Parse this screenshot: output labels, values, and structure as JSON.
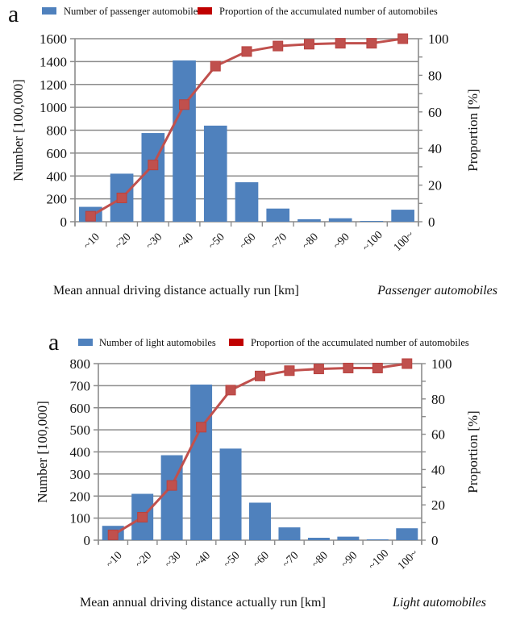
{
  "chart_data": [
    {
      "type": "bar",
      "panel_label": "a",
      "title": "",
      "caption": "Passenger automobiles",
      "xlabel": "Mean annual driving distance actually run [km]",
      "ylabel": "Number [100,000]",
      "y2label": "Proportion  [%]",
      "ylim": [
        0,
        1600
      ],
      "yticks": [
        0,
        200,
        400,
        600,
        800,
        1000,
        1200,
        1400,
        1600
      ],
      "y2lim": [
        0,
        100
      ],
      "y2ticks": [
        0,
        20,
        40,
        60,
        80,
        100
      ],
      "grid": true,
      "legend_placement": "top",
      "categories": [
        "~10",
        "~20",
        "~30",
        "~40",
        "~50",
        "~60",
        "~70",
        "~80",
        "~90",
        "~100",
        "100~"
      ],
      "series": [
        {
          "name": "Number of passenger automobiles",
          "kind": "bar",
          "axis": "left",
          "color": "#4F81BD",
          "values": [
            130,
            420,
            775,
            1410,
            840,
            345,
            115,
            22,
            30,
            7,
            105
          ]
        },
        {
          "name": "Proportion of the accumulated number of automobiles",
          "kind": "line",
          "axis": "right",
          "color": "#C0504D",
          "legend_color": "#C00000",
          "values": [
            3,
            13,
            31,
            64,
            85,
            93,
            96,
            97,
            97.5,
            97.5,
            100
          ]
        }
      ]
    },
    {
      "type": "bar",
      "panel_label": "a",
      "title": "",
      "caption": "Light automobiles",
      "xlabel": "Mean annual driving distance actually run [km]",
      "ylabel": "Number [100,000]",
      "y2label": "Proportion  [%]",
      "ylim": [
        0,
        800
      ],
      "yticks": [
        0,
        100,
        200,
        300,
        400,
        500,
        600,
        700,
        800
      ],
      "y2lim": [
        0,
        100
      ],
      "y2ticks": [
        0,
        20,
        40,
        60,
        80,
        100
      ],
      "grid": true,
      "legend_placement": "top",
      "categories": [
        "~10",
        "~20",
        "~30",
        "~40",
        "~50",
        "~60",
        "~70",
        "~80",
        "~90",
        "~100",
        "100~"
      ],
      "series": [
        {
          "name": "Number of light automobiles",
          "kind": "bar",
          "axis": "left",
          "color": "#4F81BD",
          "values": [
            65,
            210,
            385,
            705,
            415,
            170,
            58,
            11,
            16,
            4,
            54
          ]
        },
        {
          "name": "Proportion of the accumulated number of automobiles",
          "kind": "line",
          "axis": "right",
          "color": "#C0504D",
          "legend_color": "#C00000",
          "values": [
            3,
            13,
            31,
            64,
            85,
            93,
            96,
            97,
            97.5,
            97.5,
            100
          ]
        }
      ]
    }
  ]
}
